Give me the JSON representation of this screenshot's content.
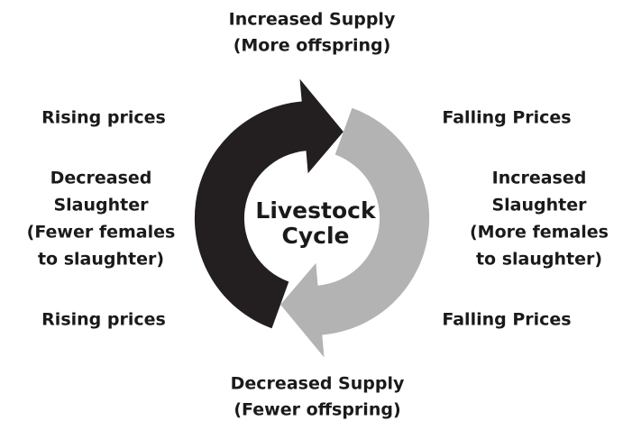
{
  "top": [
    "Increased Supply",
    "(More offspring)"
  ],
  "upper_left": "Rising prices",
  "left": [
    "Decreased",
    "Slaughter",
    "(Fewer females",
    "to slaughter)"
  ],
  "lower_left": "Rising prices",
  "upper_right": "Falling Prices",
  "right": [
    "Increased",
    "Slaughter",
    "(More females",
    "to slaughter)"
  ],
  "lower_right": "Falling Prices",
  "bottom": [
    "Decreased Supply",
    "(Fewer offspring)"
  ],
  "center": [
    "Livestock",
    "Cycle"
  ]
}
